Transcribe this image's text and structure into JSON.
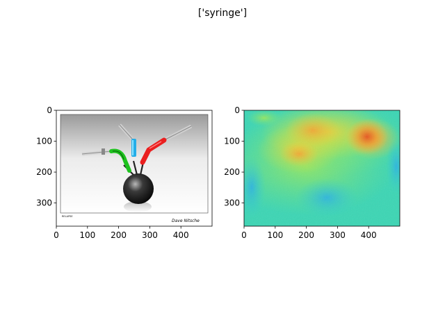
{
  "figure": {
    "suptitle": "['syringe']"
  },
  "chart_data": [
    {
      "type": "image",
      "content": "photograph: four syringes (white, green, blue, red) inserted into a black apple on a white background",
      "image_size": [
        500,
        375
      ],
      "xlim": [
        0,
        500
      ],
      "ylim": [
        375,
        0
      ],
      "xticks": [
        0,
        100,
        200,
        300,
        400
      ],
      "yticks": [
        0,
        100,
        200,
        300
      ],
      "small_texts": [
        "RELAPSE",
        "Dave Nitsche"
      ]
    },
    {
      "type": "heatmap",
      "content": "saliency / attention map over the same image (turbo-like colormap, blue=low, red=high)",
      "image_size": [
        500,
        375
      ],
      "xlim": [
        0,
        500
      ],
      "ylim": [
        375,
        0
      ],
      "xticks": [
        0,
        100,
        200,
        300,
        400
      ],
      "yticks": [
        0,
        100,
        200,
        300
      ],
      "hotspots": [
        {
          "label": "top-right syringe region",
          "x": 400,
          "y": 95,
          "level": "high"
        },
        {
          "label": "upper-middle region",
          "x": 230,
          "y": 70,
          "level": "medium-high"
        },
        {
          "label": "left syringe region",
          "x": 170,
          "y": 130,
          "level": "medium"
        }
      ]
    }
  ]
}
